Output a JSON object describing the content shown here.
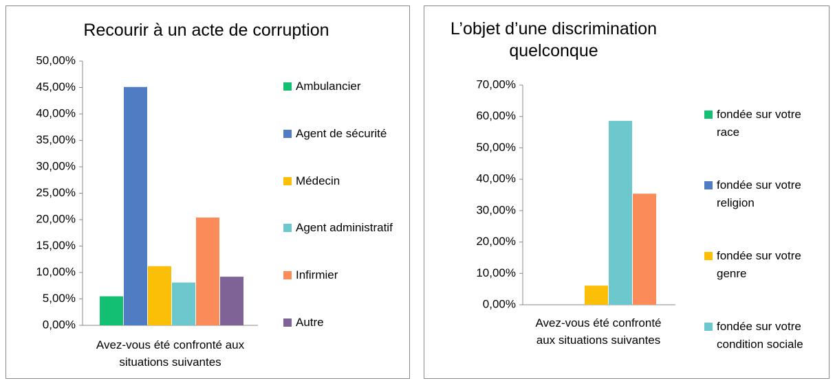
{
  "chart_data": [
    {
      "type": "bar",
      "title": "Recourir à un acte de corruption",
      "categories": [
        "Avez-vous été confronté aux situations suivantes"
      ],
      "series": [
        {
          "name": "Ambulancier",
          "color": "#13c073",
          "values": [
            5.5
          ]
        },
        {
          "name": "Agent de sécurité",
          "color": "#4f7cc2",
          "values": [
            45.1
          ]
        },
        {
          "name": "Médecin",
          "color": "#fbbf07",
          "values": [
            11.2
          ]
        },
        {
          "name": "Agent administratif",
          "color": "#6cc8cc",
          "values": [
            8.1
          ]
        },
        {
          "name": "Infirmier",
          "color": "#fb8c5a",
          "values": [
            20.4
          ]
        },
        {
          "name": "Autre",
          "color": "#7f6296",
          "values": [
            9.2
          ]
        }
      ],
      "ylim": [
        0,
        50
      ],
      "yticks": [
        {
          "value": 0,
          "label": "0,00%"
        },
        {
          "value": 5,
          "label": "5,00%"
        },
        {
          "value": 10,
          "label": "10,00%"
        },
        {
          "value": 15,
          "label": "15,00%"
        },
        {
          "value": 20,
          "label": "20,00%"
        },
        {
          "value": 25,
          "label": "25,00%"
        },
        {
          "value": 30,
          "label": "30,00%"
        },
        {
          "value": 35,
          "label": "35,00%"
        },
        {
          "value": 40,
          "label": "40,00%"
        },
        {
          "value": 45,
          "label": "45,00%"
        },
        {
          "value": 50,
          "label": "50,00%"
        }
      ],
      "legend": "right"
    },
    {
      "type": "bar",
      "title": "L’objet d’une discrimination quelconque",
      "categories": [
        "Avez-vous été confronté aux situations suivantes"
      ],
      "series": [
        {
          "name": "fondée sur votre race",
          "color": "#13c073",
          "values": [
            0
          ]
        },
        {
          "name": "fondée sur votre religion",
          "color": "#4f7cc2",
          "values": [
            0
          ]
        },
        {
          "name": "fondée sur votre genre",
          "color": "#fbbf07",
          "values": [
            6.1
          ]
        },
        {
          "name": "fondée sur votre condition sociale",
          "color": "#6cc8cc",
          "values": [
            58.6
          ]
        },
        {
          "name": null,
          "color": "#fb8c5a",
          "values": [
            35.4
          ]
        }
      ],
      "ylim": [
        0,
        70
      ],
      "yticks": [
        {
          "value": 0,
          "label": "0,00%"
        },
        {
          "value": 10,
          "label": "10,00%"
        },
        {
          "value": 20,
          "label": "20,00%"
        },
        {
          "value": 30,
          "label": "30,00%"
        },
        {
          "value": 40,
          "label": "40,00%"
        },
        {
          "value": 50,
          "label": "50,00%"
        },
        {
          "value": 60,
          "label": "60,00%"
        },
        {
          "value": 70,
          "label": "70,00%"
        }
      ],
      "legend": "right"
    }
  ]
}
